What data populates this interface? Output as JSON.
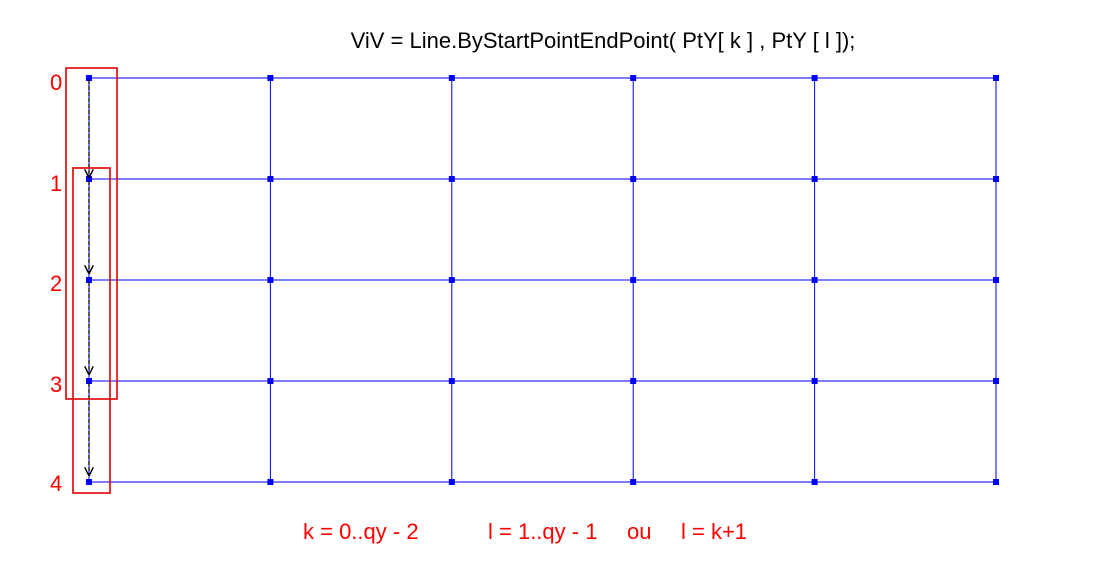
{
  "header": {
    "code_line": "ViV = Line.ByStartPointEndPoint( PtY[ k ] , PtY [ l ]);"
  },
  "rows": {
    "labels": [
      "0",
      "1",
      "2",
      "3",
      "4"
    ]
  },
  "footer": {
    "k_range": "k = 0..qy - 2",
    "l_range": "l = 1..qy - 1",
    "or_word": "ou",
    "l_alt": "l = k+1"
  },
  "colors": {
    "grid": "#0000ff",
    "points": "#0000ff",
    "labels": "#ff0000",
    "boxes": "#e00000",
    "arrows": "#000000"
  },
  "grid": {
    "columns": 6,
    "rows": 5
  }
}
